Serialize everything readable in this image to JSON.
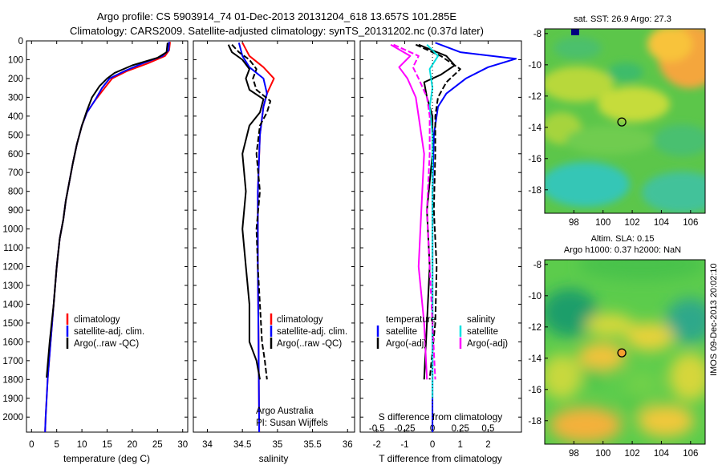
{
  "title": {
    "line1": "Argo profile: CS 5903914_74 01-Dec-2013 20131204_618 13.657S 101.285E",
    "line2": "Climatology: CARS2009. Satellite-adjusted climatology: synTS_20131202.nc (0.37d later)"
  },
  "side_label": "IMOS 09-Dec-2013 20:02:10",
  "colors": {
    "clim": "#ff0000",
    "sat": "#0000ff",
    "argo": "#000000",
    "sat_s": "#00e0e0",
    "argo_s": "#ff00ff"
  },
  "chart_data": [
    {
      "type": "line",
      "id": "temperature",
      "xlabel": "temperature (deg C)",
      "xlim": [
        -1,
        31
      ],
      "xticks": [
        0,
        5,
        10,
        15,
        20,
        25,
        30
      ],
      "ylim": [
        2080,
        0
      ],
      "yticks": [
        0,
        100,
        200,
        300,
        400,
        500,
        600,
        700,
        800,
        900,
        1000,
        1100,
        1200,
        1300,
        1400,
        1500,
        1600,
        1700,
        1800,
        1900,
        2000
      ],
      "legend": [
        "climatology",
        "satellite-adj. clim.",
        "Argo(..raw -QC)"
      ],
      "series": [
        {
          "key": "clim",
          "style": "solid",
          "points": [
            [
              27.5,
              5
            ],
            [
              27.3,
              50
            ],
            [
              26.5,
              80
            ],
            [
              23,
              120
            ],
            [
              19,
              160
            ],
            [
              16,
              200
            ],
            [
              14.5,
              250
            ],
            [
              12.5,
              320
            ],
            [
              11,
              380
            ],
            [
              10,
              450
            ],
            [
              9,
              550
            ],
            [
              8.2,
              650
            ],
            [
              7.5,
              750
            ],
            [
              6.8,
              850
            ],
            [
              6.3,
              950
            ],
            [
              5.6,
              1050
            ],
            [
              5,
              1200
            ],
            [
              4.4,
              1400
            ],
            [
              3.8,
              1600
            ],
            [
              3.2,
              1800
            ],
            [
              2.8,
              2000
            ],
            [
              2.7,
              2080
            ]
          ]
        },
        {
          "key": "sat",
          "style": "solid",
          "points": [
            [
              27.3,
              5
            ],
            [
              27.2,
              50
            ],
            [
              26,
              80
            ],
            [
              22,
              120
            ],
            [
              18.5,
              160
            ],
            [
              15.5,
              200
            ],
            [
              14,
              250
            ],
            [
              12.5,
              320
            ],
            [
              11,
              380
            ],
            [
              10,
              450
            ],
            [
              9,
              550
            ],
            [
              8.2,
              650
            ],
            [
              7.5,
              750
            ],
            [
              6.8,
              850
            ],
            [
              6.3,
              950
            ],
            [
              5.6,
              1050
            ],
            [
              5,
              1200
            ],
            [
              4.4,
              1400
            ],
            [
              3.8,
              1600
            ],
            [
              3.2,
              1800
            ],
            [
              2.8,
              2000
            ],
            [
              2.7,
              2080
            ]
          ]
        },
        {
          "key": "argo",
          "style": "solid",
          "points": [
            [
              27,
              10
            ],
            [
              26.8,
              60
            ],
            [
              25,
              90
            ],
            [
              20,
              130
            ],
            [
              16.5,
              170
            ],
            [
              15,
              200
            ],
            [
              13.5,
              240
            ],
            [
              12,
              300
            ],
            [
              11,
              370
            ],
            [
              10,
              450
            ],
            [
              9,
              550
            ],
            [
              8.2,
              650
            ],
            [
              7.5,
              750
            ],
            [
              6.8,
              850
            ],
            [
              6.3,
              950
            ],
            [
              5.6,
              1050
            ],
            [
              5,
              1200
            ],
            [
              4.4,
              1400
            ],
            [
              3.6,
              1600
            ],
            [
              3,
              1790
            ]
          ]
        }
      ]
    },
    {
      "type": "line",
      "id": "salinity",
      "xlabel": "salinity",
      "xlim": [
        33.8,
        36.1
      ],
      "xticks": [
        34,
        34.5,
        35,
        35.5,
        36
      ],
      "ylim": [
        2080,
        0
      ],
      "legend": [
        "climatology",
        "satellite-adj. clim.",
        "Argo(..raw -QC)"
      ],
      "annotations": [
        "Argo Australia",
        "PI: Susan Wijffels"
      ],
      "series": [
        {
          "key": "clim",
          "style": "solid",
          "points": [
            [
              34.5,
              10
            ],
            [
              34.6,
              80
            ],
            [
              34.8,
              140
            ],
            [
              34.95,
              200
            ],
            [
              34.85,
              280
            ],
            [
              34.8,
              350
            ],
            [
              34.75,
              500
            ],
            [
              34.72,
              800
            ],
            [
              34.72,
              1200
            ],
            [
              34.73,
              1600
            ],
            [
              34.74,
              2080
            ]
          ]
        },
        {
          "key": "sat",
          "style": "solid",
          "points": [
            [
              34.45,
              10
            ],
            [
              34.5,
              80
            ],
            [
              34.6,
              140
            ],
            [
              34.8,
              200
            ],
            [
              34.85,
              280
            ],
            [
              34.8,
              350
            ],
            [
              34.75,
              500
            ],
            [
              34.72,
              800
            ],
            [
              34.72,
              1200
            ],
            [
              34.73,
              1600
            ],
            [
              34.74,
              2080
            ]
          ]
        },
        {
          "key": "argo",
          "style": "solid",
          "points": [
            [
              34.3,
              20
            ],
            [
              34.35,
              60
            ],
            [
              34.5,
              100
            ],
            [
              34.6,
              150
            ],
            [
              34.55,
              200
            ],
            [
              34.6,
              260
            ],
            [
              34.8,
              310
            ],
            [
              34.75,
              380
            ],
            [
              34.6,
              450
            ],
            [
              34.5,
              600
            ],
            [
              34.55,
              800
            ],
            [
              34.5,
              1000
            ],
            [
              34.55,
              1200
            ],
            [
              34.6,
              1400
            ],
            [
              34.6,
              1600
            ],
            [
              34.7,
              1700
            ],
            [
              34.75,
              1800
            ]
          ]
        },
        {
          "key": "argo",
          "style": "dash",
          "points": [
            [
              34.35,
              20
            ],
            [
              34.45,
              60
            ],
            [
              34.6,
              100
            ],
            [
              34.7,
              150
            ],
            [
              34.65,
              200
            ],
            [
              34.7,
              260
            ],
            [
              34.9,
              320
            ],
            [
              34.85,
              380
            ],
            [
              34.75,
              450
            ],
            [
              34.7,
              600
            ],
            [
              34.75,
              800
            ],
            [
              34.7,
              1000
            ],
            [
              34.72,
              1200
            ],
            [
              34.75,
              1400
            ],
            [
              34.78,
              1600
            ],
            [
              34.82,
              1700
            ],
            [
              34.85,
              1800
            ]
          ]
        }
      ]
    },
    {
      "type": "line",
      "id": "difference",
      "xlabel": "T difference from climatology",
      "xlabel_top": "S difference from climatology",
      "xlim": [
        -2.6,
        3.2
      ],
      "xticks": [
        -2,
        -1,
        0,
        1,
        2
      ],
      "top_ticks": [
        {
          "label": "-0.5",
          "t": -2
        },
        {
          "label": "-0.25",
          "t": -1
        },
        {
          "label": "0",
          "t": 0
        },
        {
          "label": "0.25",
          "t": 1
        },
        {
          "label": "0.5",
          "t": 2
        }
      ],
      "ylim": [
        2080,
        0
      ],
      "legend_left": {
        "header": "temperature",
        "items": [
          "satellite",
          "Argo(-adj)"
        ]
      },
      "legend_right": {
        "header": "salinity",
        "items": [
          "satellite",
          "Argo(-adj)"
        ]
      },
      "series": [
        {
          "key": "sat",
          "style": "solid",
          "points": [
            [
              0.1,
              10
            ],
            [
              1,
              60
            ],
            [
              3.0,
              95
            ],
            [
              2,
              140
            ],
            [
              1.2,
              200
            ],
            [
              0.5,
              280
            ],
            [
              0.2,
              350
            ],
            [
              0.05,
              500
            ],
            [
              0,
              800
            ],
            [
              0,
              1200
            ],
            [
              0,
              1600
            ],
            [
              0,
              2000
            ],
            [
              0,
              2080
            ]
          ]
        },
        {
          "key": "argo",
          "style": "solid",
          "points": [
            [
              -0.5,
              20
            ],
            [
              0.5,
              80
            ],
            [
              0.8,
              130
            ],
            [
              0.3,
              180
            ],
            [
              -0.3,
              220
            ],
            [
              -0.2,
              300
            ],
            [
              0,
              400
            ],
            [
              0,
              600
            ],
            [
              -0.2,
              900
            ],
            [
              -0.1,
              1200
            ],
            [
              -0.2,
              1500
            ],
            [
              -0.3,
              1800
            ]
          ]
        },
        {
          "key": "argo",
          "style": "dash",
          "points": [
            [
              -0.6,
              20
            ],
            [
              0.3,
              80
            ],
            [
              1.0,
              150
            ],
            [
              0.5,
              220
            ],
            [
              0.2,
              300
            ],
            [
              0.1,
              400
            ],
            [
              0.1,
              600
            ],
            [
              0.05,
              900
            ],
            [
              0.15,
              1200
            ],
            [
              0.1,
              1500
            ],
            [
              -0.1,
              1800
            ]
          ]
        },
        {
          "key": "sat_s",
          "style": "solid",
          "points": [
            [
              -0.2,
              20
            ],
            [
              0.2,
              80
            ],
            [
              -0.1,
              150
            ],
            [
              0,
              250
            ],
            [
              -0.1,
              350
            ],
            [
              0,
              500
            ],
            [
              0,
              800
            ],
            [
              0,
              1200
            ],
            [
              0,
              1600
            ],
            [
              0,
              1900
            ]
          ]
        },
        {
          "key": "argo_s",
          "style": "solid",
          "points": [
            [
              -1.5,
              20
            ],
            [
              -0.8,
              80
            ],
            [
              -1.2,
              140
            ],
            [
              -0.9,
              200
            ],
            [
              -0.6,
              300
            ],
            [
              -0.5,
              400
            ],
            [
              -0.3,
              600
            ],
            [
              -0.4,
              900
            ],
            [
              -0.5,
              1200
            ],
            [
              -0.3,
              1500
            ],
            [
              -0.2,
              1800
            ]
          ]
        },
        {
          "key": "argo_s",
          "style": "dash",
          "points": [
            [
              -1.4,
              20
            ],
            [
              -0.5,
              80
            ],
            [
              -0.7,
              140
            ],
            [
              -0.5,
              200
            ],
            [
              -0.2,
              300
            ],
            [
              -0.1,
              400
            ],
            [
              -0.1,
              600
            ],
            [
              -0.2,
              900
            ],
            [
              -0.1,
              1200
            ],
            [
              0,
              1500
            ],
            [
              0.1,
              1800
            ]
          ]
        }
      ]
    },
    {
      "type": "heatmap",
      "id": "sst_map",
      "title": "sat. SST: 26.9 Argo: 27.3",
      "xlim": [
        96,
        107
      ],
      "ylim": [
        -19.5,
        -7.7
      ],
      "xticks": [
        98,
        100,
        102,
        104,
        106
      ],
      "yticks": [
        -8,
        -10,
        -12,
        -14,
        -16,
        -18
      ],
      "marker": {
        "lon": 101.285,
        "lat": -13.657
      }
    },
    {
      "type": "heatmap",
      "id": "sla_map",
      "title": "Altim. SLA: 0.15",
      "subtitle": "Argo h1000: 0.37 h2000: NaN",
      "xlim": [
        96,
        107
      ],
      "ylim": [
        -19.5,
        -7.7
      ],
      "xticks": [
        98,
        100,
        102,
        104,
        106
      ],
      "yticks": [
        -8,
        -10,
        -12,
        -14,
        -16,
        -18
      ],
      "marker": {
        "lon": 101.285,
        "lat": -13.657
      }
    }
  ]
}
